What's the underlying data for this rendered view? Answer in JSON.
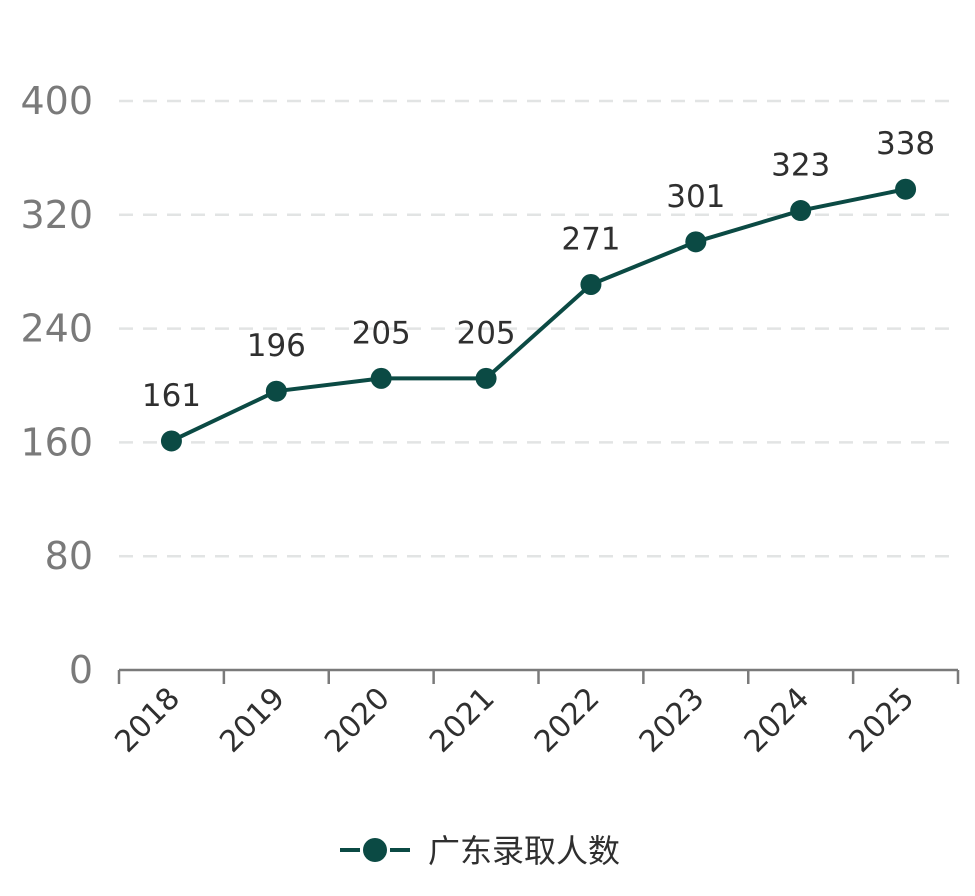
{
  "chart_data": {
    "type": "line",
    "title": "",
    "xlabel": "",
    "ylabel": "",
    "categories": [
      "2018",
      "2019",
      "2020",
      "2021",
      "2022",
      "2023",
      "2024",
      "2025"
    ],
    "series": [
      {
        "name": "广东录取人数",
        "values": [
          161,
          196,
          205,
          205,
          271,
          301,
          323,
          338
        ],
        "color": "#0b4a44"
      }
    ],
    "data_labels": [
      "161",
      "196",
      "205",
      "205",
      "271",
      "301",
      "323",
      "338"
    ],
    "y_ticks": [
      0,
      80,
      160,
      240,
      320,
      400
    ],
    "y_tick_labels": [
      "0",
      "80",
      "160",
      "240",
      "320",
      "400"
    ],
    "ylim": [
      0,
      400
    ],
    "grid": true,
    "grid_style": "dashed",
    "legend": {
      "position": "bottom-center",
      "label": "广东录取人数"
    }
  }
}
